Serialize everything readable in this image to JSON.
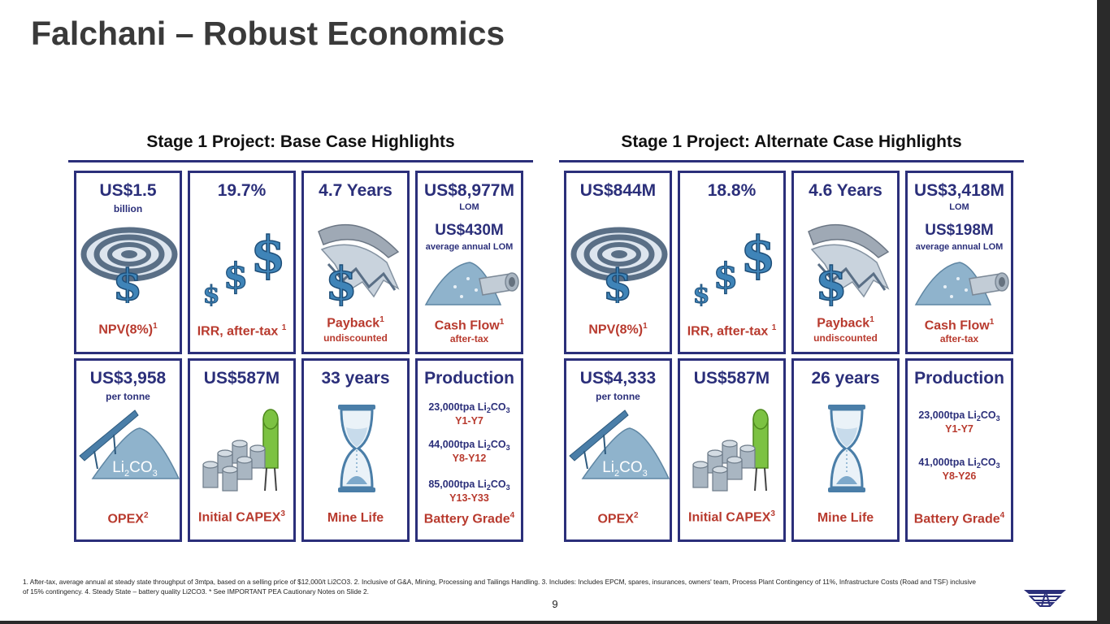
{
  "title": "Falchani – Robust Economics",
  "sections": [
    {
      "heading": "Stage 1 Project: Base Case Highlights",
      "npv": {
        "value": "US$1.5",
        "sub": "billion",
        "label": "NPV(8%)",
        "sup": "1"
      },
      "irr": {
        "value": "19.7%",
        "label": "IRR, after-tax",
        "sup": "1"
      },
      "payback": {
        "value": "4.7 Years",
        "label": "Payback",
        "sup": "1",
        "sub": "undiscounted"
      },
      "cashflow": {
        "value": "US$8,977M",
        "sub": "LOM",
        "value2": "US$430M",
        "sub2": "average annual LOM",
        "label": "Cash Flow",
        "sup": "1",
        "sub3": "after-tax"
      },
      "opex": {
        "value": "US$3,958",
        "sub": "per tonne",
        "label": "OPEX",
        "sup": "2"
      },
      "capex": {
        "value": "US$587M",
        "label": "Initial CAPEX",
        "sup": "3"
      },
      "minelife": {
        "value": "33 years",
        "label": "Mine Life"
      },
      "production": {
        "value": "Production",
        "lines": [
          {
            "qty": "23,000tpa Li",
            "sub": "2",
            "tail": "CO",
            "sub2": "3",
            "period": "Y1-Y7"
          },
          {
            "qty": "44,000tpa Li",
            "sub": "2",
            "tail": "CO",
            "sub2": "3",
            "period": "Y8-Y12"
          },
          {
            "qty": "85,000tpa Li",
            "sub": "2",
            "tail": "CO",
            "sub2": "3",
            "period": "Y13-Y33"
          }
        ],
        "label": "Battery Grade",
        "sup": "4"
      }
    },
    {
      "heading": "Stage 1 Project: Alternate Case Highlights",
      "npv": {
        "value": "US$844M",
        "sub": "",
        "label": "NPV(8%)",
        "sup": "1"
      },
      "irr": {
        "value": "18.8%",
        "label": "IRR, after-tax",
        "sup": "1"
      },
      "payback": {
        "value": "4.6 Years",
        "label": "Payback",
        "sup": "1",
        "sub": "undiscounted"
      },
      "cashflow": {
        "value": "US$3,418M",
        "sub": "LOM",
        "value2": "US$198M",
        "sub2": "average annual LOM",
        "label": "Cash Flow",
        "sup": "1",
        "sub3": "after-tax"
      },
      "opex": {
        "value": "US$4,333",
        "sub": "per tonne",
        "label": "OPEX",
        "sup": "2"
      },
      "capex": {
        "value": "US$587M",
        "label": "Initial CAPEX",
        "sup": "3"
      },
      "minelife": {
        "value": "26 years",
        "label": "Mine Life"
      },
      "production": {
        "value": "Production",
        "lines": [
          {
            "qty": "23,000tpa Li",
            "sub": "2",
            "tail": "CO",
            "sub2": "3",
            "period": "Y1-Y7"
          },
          {
            "qty": "41,000tpa Li",
            "sub": "2",
            "tail": "CO",
            "sub2": "3",
            "period": "Y8-Y26"
          }
        ],
        "label": "Battery Grade",
        "sup": "4"
      }
    }
  ],
  "li2co3_icon_text": {
    "a": "Li",
    "b": "2",
    "c": "CO",
    "d": "3"
  },
  "footnote": "1. After-tax, average annual at steady state throughput of 3mtpa, based on a selling price of $12,000/t Li2CO3. 2. Inclusive of G&A, Mining, Processing and Tailings Handling. 3. Includes: Includes EPCM, spares, insurances, owners' team, Process Plant Contingency of 11%, Infrastructure Costs (Road and TSF) inclusive of 15% contingency.   4. Steady State – battery quality Li2CO3. * See IMPORTANT PEA Cautionary Notes on Slide 2.",
  "page_number": "9",
  "colors": {
    "navy": "#2b2f7a",
    "red": "#b83a2e",
    "steel": "#4a7ea8",
    "green": "#7cc242"
  }
}
